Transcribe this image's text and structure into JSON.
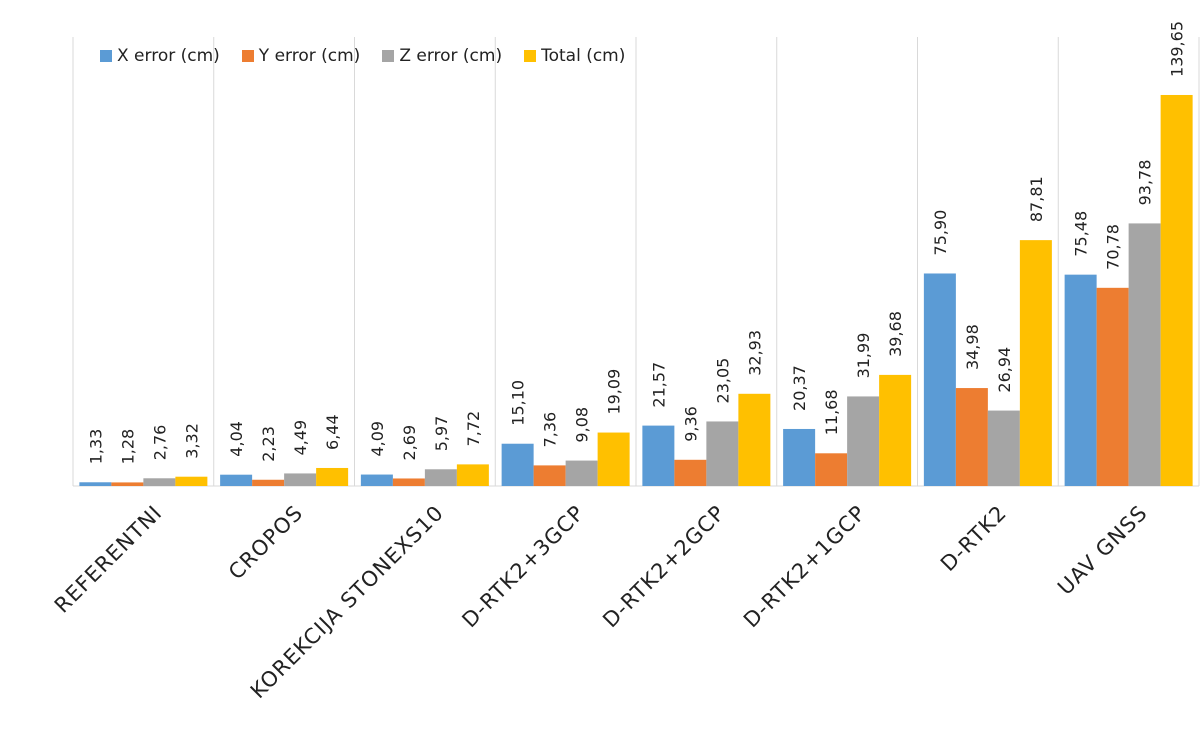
{
  "chart_data": {
    "type": "bar",
    "title": "",
    "xlabel": "",
    "ylabel": "",
    "ylim": [
      0,
      140
    ],
    "grid": "vertical category separators",
    "legend_position": "top-left",
    "categories": [
      "REFERENTNI",
      "CROPOS",
      "KOREKCIJA STONEXS10",
      "D-RTK2+3GCP",
      "D-RTK2+2GCP",
      "D-RTK2+1GCP",
      "D-RTK2",
      "UAV GNSS"
    ],
    "series": [
      {
        "name": "X error (cm)",
        "color": "#5B9BD5",
        "values": [
          1.33,
          4.04,
          4.09,
          15.1,
          21.57,
          20.37,
          75.9,
          75.48
        ],
        "labels": [
          "1,33",
          "4,04",
          "4,09",
          "15,10",
          "21,57",
          "20,37",
          "75,90",
          "75,48"
        ]
      },
      {
        "name": "Y error (cm)",
        "color": "#ED7D31",
        "values": [
          1.28,
          2.23,
          2.69,
          7.36,
          9.36,
          11.68,
          34.98,
          70.78
        ],
        "labels": [
          "1,28",
          "2,23",
          "2,69",
          "7,36",
          "9,36",
          "11,68",
          "34,98",
          "70,78"
        ]
      },
      {
        "name": "Z error (cm)",
        "color": "#A5A5A5",
        "values": [
          2.76,
          4.49,
          5.97,
          9.08,
          23.05,
          31.99,
          26.94,
          93.78
        ],
        "labels": [
          "2,76",
          "4,49",
          "5,97",
          "9,08",
          "23,05",
          "31,99",
          "26,94",
          "93,78"
        ]
      },
      {
        "name": "Total (cm)",
        "color": "#FFC000",
        "values": [
          3.32,
          6.44,
          7.72,
          19.09,
          32.93,
          39.68,
          87.81,
          139.65
        ],
        "labels": [
          "3,32",
          "6,44",
          "7,72",
          "19,09",
          "32,93",
          "39,68",
          "87,81",
          "139,65"
        ]
      }
    ]
  }
}
